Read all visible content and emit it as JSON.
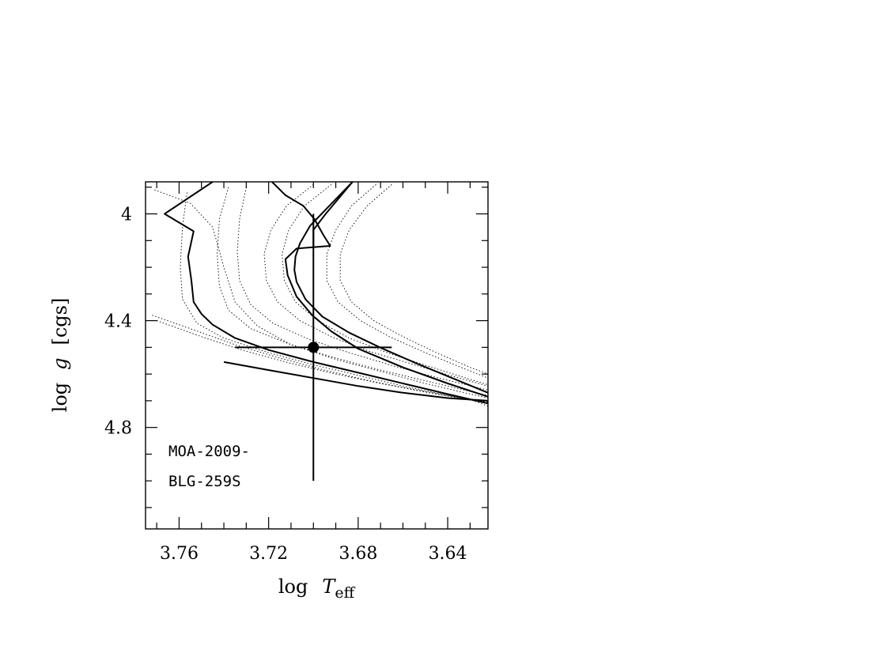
{
  "chart_data": {
    "type": "line",
    "title": "",
    "xlabel": {
      "prefix": "log",
      "var": "T",
      "sub": "eff"
    },
    "ylabel": {
      "prefix": "log",
      "var": "g",
      "suffix": "[cgs]"
    },
    "xlim": [
      3.775,
      3.622
    ],
    "ylim": [
      3.88,
      5.18
    ],
    "x_reversed": true,
    "y_reversed": true,
    "x_major_ticks": [
      3.76,
      3.72,
      3.68,
      3.64
    ],
    "x_tick_labels": [
      "3.76",
      "3.72",
      "3.68",
      "3.64"
    ],
    "x_minor_step": 0.01,
    "y_major_ticks": [
      4.0,
      4.4,
      4.8
    ],
    "y_tick_labels": [
      "4",
      "4.4",
      "4.8"
    ],
    "y_minor_step": 0.1,
    "grid": false,
    "legend": "none",
    "annotation_lines": [
      "MOA-2009-",
      "BLG-259S"
    ],
    "series": [
      {
        "style": "solid",
        "points": [
          [
            3.745,
            3.88
          ],
          [
            3.7665,
            4.0
          ],
          [
            3.7535,
            4.065
          ],
          [
            3.756,
            4.16
          ],
          [
            3.7545,
            4.25
          ],
          [
            3.7535,
            4.33
          ],
          [
            3.75,
            4.375
          ],
          [
            3.745,
            4.415
          ],
          [
            3.735,
            4.465
          ],
          [
            3.72,
            4.51
          ],
          [
            3.7,
            4.555
          ],
          [
            3.68,
            4.595
          ],
          [
            3.66,
            4.635
          ],
          [
            3.64,
            4.675
          ],
          [
            3.622,
            4.71
          ]
        ]
      },
      {
        "style": "solid",
        "points": [
          [
            3.7185,
            3.88
          ],
          [
            3.7125,
            3.93
          ],
          [
            3.7045,
            3.97
          ],
          [
            3.6995,
            4.02
          ],
          [
            3.6955,
            4.08
          ],
          [
            3.6925,
            4.12
          ],
          [
            3.7075,
            4.13
          ],
          [
            3.7125,
            4.17
          ],
          [
            3.7115,
            4.23
          ],
          [
            3.7075,
            4.31
          ],
          [
            3.7005,
            4.38
          ],
          [
            3.692,
            4.44
          ],
          [
            3.68,
            4.505
          ],
          [
            3.66,
            4.575
          ],
          [
            3.64,
            4.635
          ],
          [
            3.622,
            4.685
          ]
        ]
      },
      {
        "style": "solid",
        "points": [
          [
            3.6825,
            3.88
          ],
          [
            3.6875,
            3.93
          ],
          [
            3.6945,
            4.0
          ],
          [
            3.7,
            4.06
          ],
          [
            3.7,
            4.09
          ],
          [
            3.7,
            4.11
          ],
          [
            3.7,
            4.12
          ],
          [
            3.7,
            4.12
          ]
        ]
      },
      {
        "style": "solid",
        "points": [
          [
            3.6825,
            3.88
          ],
          [
            3.6935,
            3.975
          ],
          [
            3.7015,
            4.045
          ],
          [
            3.706,
            4.11
          ],
          [
            3.708,
            4.16
          ],
          [
            3.7085,
            4.21
          ],
          [
            3.7075,
            4.255
          ],
          [
            3.7035,
            4.32
          ],
          [
            3.696,
            4.385
          ],
          [
            3.684,
            4.445
          ],
          [
            3.669,
            4.505
          ],
          [
            3.654,
            4.56
          ],
          [
            3.638,
            4.615
          ],
          [
            3.622,
            4.67
          ]
        ]
      },
      {
        "style": "solid",
        "points": [
          [
            3.74,
            4.555
          ],
          [
            3.72,
            4.585
          ],
          [
            3.7,
            4.615
          ],
          [
            3.68,
            4.645
          ],
          [
            3.66,
            4.67
          ],
          [
            3.64,
            4.69
          ],
          [
            3.622,
            4.7
          ]
        ]
      },
      {
        "style": "dotted",
        "points": [
          [
            3.771,
            3.91
          ],
          [
            3.755,
            3.96
          ],
          [
            3.745,
            4.05
          ],
          [
            3.74,
            4.2
          ],
          [
            3.735,
            4.33
          ],
          [
            3.725,
            4.42
          ],
          [
            3.71,
            4.49
          ],
          [
            3.69,
            4.545
          ],
          [
            3.67,
            4.59
          ],
          [
            3.65,
            4.635
          ],
          [
            3.635,
            4.665
          ],
          [
            3.622,
            4.69
          ]
        ]
      },
      {
        "style": "dotted",
        "points": [
          [
            3.7565,
            3.92
          ],
          [
            3.7585,
            4.05
          ],
          [
            3.7595,
            4.2
          ],
          [
            3.7585,
            4.32
          ],
          [
            3.752,
            4.41
          ],
          [
            3.74,
            4.465
          ],
          [
            3.72,
            4.52
          ],
          [
            3.7,
            4.565
          ],
          [
            3.68,
            4.605
          ],
          [
            3.66,
            4.645
          ],
          [
            3.64,
            4.68
          ],
          [
            3.622,
            4.705
          ]
        ]
      },
      {
        "style": "dotted",
        "points": [
          [
            3.738,
            3.9
          ],
          [
            3.742,
            4.02
          ],
          [
            3.743,
            4.15
          ],
          [
            3.742,
            4.27
          ],
          [
            3.738,
            4.36
          ],
          [
            3.728,
            4.43
          ],
          [
            3.71,
            4.49
          ],
          [
            3.69,
            4.54
          ],
          [
            3.67,
            4.585
          ],
          [
            3.65,
            4.625
          ],
          [
            3.63,
            4.665
          ],
          [
            3.622,
            4.68
          ]
        ]
      },
      {
        "style": "dotted",
        "points": [
          [
            3.73,
            3.9
          ],
          [
            3.733,
            4.02
          ],
          [
            3.734,
            4.14
          ],
          [
            3.733,
            4.25
          ],
          [
            3.728,
            4.34
          ],
          [
            3.718,
            4.41
          ],
          [
            3.702,
            4.47
          ],
          [
            3.684,
            4.52
          ],
          [
            3.664,
            4.57
          ],
          [
            3.644,
            4.615
          ],
          [
            3.622,
            4.66
          ]
        ]
      },
      {
        "style": "dotted",
        "points": [
          [
            3.7,
            3.89
          ],
          [
            3.712,
            3.97
          ],
          [
            3.719,
            4.06
          ],
          [
            3.722,
            4.15
          ],
          [
            3.721,
            4.25
          ],
          [
            3.716,
            4.33
          ],
          [
            3.706,
            4.4
          ],
          [
            3.692,
            4.46
          ],
          [
            3.675,
            4.515
          ],
          [
            3.655,
            4.565
          ],
          [
            3.635,
            4.615
          ],
          [
            3.622,
            4.645
          ]
        ]
      },
      {
        "style": "dotted",
        "points": [
          [
            3.692,
            3.89
          ],
          [
            3.704,
            3.97
          ],
          [
            3.711,
            4.06
          ],
          [
            3.714,
            4.15
          ],
          [
            3.713,
            4.25
          ],
          [
            3.708,
            4.33
          ],
          [
            3.698,
            4.4
          ],
          [
            3.684,
            4.465
          ],
          [
            3.667,
            4.52
          ],
          [
            3.647,
            4.575
          ],
          [
            3.628,
            4.625
          ],
          [
            3.622,
            4.64
          ]
        ]
      },
      {
        "style": "dotted",
        "points": [
          [
            3.672,
            3.89
          ],
          [
            3.683,
            3.97
          ],
          [
            3.69,
            4.06
          ],
          [
            3.694,
            4.15
          ],
          [
            3.694,
            4.25
          ],
          [
            3.689,
            4.33
          ],
          [
            3.679,
            4.4
          ],
          [
            3.666,
            4.46
          ],
          [
            3.65,
            4.52
          ],
          [
            3.634,
            4.575
          ],
          [
            3.622,
            4.615
          ]
        ]
      },
      {
        "style": "dotted",
        "points": [
          [
            3.665,
            3.89
          ],
          [
            3.676,
            3.97
          ],
          [
            3.684,
            4.06
          ],
          [
            3.688,
            4.15
          ],
          [
            3.688,
            4.25
          ],
          [
            3.683,
            4.33
          ],
          [
            3.673,
            4.4
          ],
          [
            3.66,
            4.46
          ],
          [
            3.645,
            4.52
          ],
          [
            3.63,
            4.575
          ],
          [
            3.622,
            4.6
          ]
        ]
      },
      {
        "style": "dotted",
        "points": [
          [
            3.77,
            4.4
          ],
          [
            3.75,
            4.46
          ],
          [
            3.73,
            4.515
          ],
          [
            3.71,
            4.56
          ],
          [
            3.69,
            4.6
          ],
          [
            3.67,
            4.635
          ],
          [
            3.65,
            4.665
          ],
          [
            3.63,
            4.695
          ],
          [
            3.622,
            4.72
          ]
        ]
      },
      {
        "style": "dotted",
        "points": [
          [
            3.772,
            4.38
          ],
          [
            3.755,
            4.43
          ],
          [
            3.735,
            4.49
          ],
          [
            3.715,
            4.54
          ],
          [
            3.695,
            4.585
          ],
          [
            3.675,
            4.625
          ],
          [
            3.655,
            4.66
          ],
          [
            3.635,
            4.69
          ],
          [
            3.622,
            4.71
          ]
        ]
      }
    ],
    "data_point": {
      "x": 3.7,
      "y": 4.5,
      "x_err": [
        3.735,
        3.665
      ],
      "y_err": [
        4.0,
        5.0
      ]
    }
  }
}
